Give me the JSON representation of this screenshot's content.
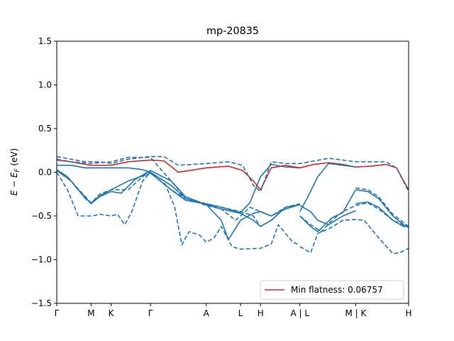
{
  "chart_data": {
    "type": "line",
    "title": "mp-20835",
    "ylabel": "E − E_F (eV)",
    "ylabel_parts": {
      "main": "E − E",
      "sub": "F",
      "unit": " (eV)"
    },
    "xlabel": "",
    "xlim": [
      0,
      4.92
    ],
    "ylim": [
      -1.5,
      1.5
    ],
    "yticks": [
      -1.5,
      -1.0,
      -0.5,
      0.0,
      0.5,
      1.0,
      1.5
    ],
    "ytick_labels": [
      "−1.5",
      "−1.0",
      "−0.5",
      "0.0",
      "0.5",
      "1.0",
      "1.5"
    ],
    "xticks": [
      {
        "x": 0.0,
        "label": "Γ"
      },
      {
        "x": 0.48,
        "label": "M"
      },
      {
        "x": 0.76,
        "label": "K"
      },
      {
        "x": 1.31,
        "label": "Γ"
      },
      {
        "x": 2.09,
        "label": "A"
      },
      {
        "x": 2.57,
        "label": "L"
      },
      {
        "x": 2.85,
        "label": "H"
      },
      {
        "x": 3.4,
        "label": "A | L"
      },
      {
        "x": 4.18,
        "label": "M | K"
      },
      {
        "x": 4.92,
        "label": "H"
      }
    ],
    "legend": {
      "label": "Min flatness: 0.06757",
      "color": "#d62728",
      "placement": "lower right"
    },
    "grid": false,
    "colors": {
      "band": "#1f77b4",
      "flat_band": "#d62728"
    },
    "series": [
      {
        "style": "solid",
        "color": "#1f77b4",
        "points": [
          [
            0,
            0.08
          ],
          [
            0.2,
            0.08
          ],
          [
            0.4,
            0.05
          ],
          [
            0.6,
            0.05
          ],
          [
            0.76,
            0.05
          ],
          [
            1.0,
            0.05
          ],
          [
            1.2,
            0.03
          ],
          [
            1.31,
            0.0
          ],
          [
            1.6,
            -0.15
          ],
          [
            1.8,
            -0.3
          ],
          [
            2.09,
            -0.37
          ],
          [
            2.3,
            -0.42
          ],
          [
            2.57,
            -0.47
          ],
          [
            2.75,
            -0.55
          ],
          [
            2.85,
            -0.62
          ],
          [
            3.0,
            -0.55
          ],
          [
            3.2,
            -0.4
          ],
          [
            3.4,
            -0.37
          ]
        ]
      },
      {
        "style": "solid",
        "color": "#1f77b4",
        "points": [
          [
            0,
            0.03
          ],
          [
            0.15,
            -0.05
          ],
          [
            0.3,
            -0.2
          ],
          [
            0.48,
            -0.36
          ],
          [
            0.6,
            -0.28
          ],
          [
            0.76,
            -0.22
          ],
          [
            0.9,
            -0.24
          ],
          [
            1.1,
            -0.08
          ],
          [
            1.31,
            0.02
          ],
          [
            1.6,
            -0.1
          ],
          [
            1.8,
            -0.28
          ],
          [
            2.09,
            -0.37
          ],
          [
            2.3,
            -0.55
          ],
          [
            2.4,
            -0.77
          ],
          [
            2.57,
            -0.55
          ],
          [
            2.75,
            -0.47
          ],
          [
            2.85,
            -0.45
          ],
          [
            3.0,
            -0.5
          ],
          [
            3.2,
            -0.42
          ],
          [
            3.4,
            -0.37
          ]
        ]
      },
      {
        "style": "solid",
        "color": "#1f77b4",
        "points": [
          [
            0,
            0.02
          ],
          [
            0.2,
            -0.1
          ],
          [
            0.4,
            -0.3
          ],
          [
            0.48,
            -0.35
          ],
          [
            0.6,
            -0.27
          ],
          [
            0.76,
            -0.2
          ],
          [
            1.0,
            -0.1
          ],
          [
            1.31,
            -0.01
          ],
          [
            1.6,
            -0.2
          ],
          [
            1.8,
            -0.32
          ],
          [
            2.09,
            -0.36
          ],
          [
            2.3,
            -0.4
          ],
          [
            2.57,
            -0.46
          ],
          [
            2.7,
            -0.35
          ],
          [
            2.85,
            -0.05
          ],
          [
            3.0,
            0.09
          ],
          [
            3.2,
            0.06
          ],
          [
            3.4,
            0.05
          ]
        ]
      },
      {
        "style": "solid",
        "color": "#d62728",
        "points": [
          [
            0,
            0.14
          ],
          [
            0.2,
            0.12
          ],
          [
            0.48,
            0.08
          ],
          [
            0.76,
            0.08
          ],
          [
            1.0,
            0.12
          ],
          [
            1.31,
            0.14
          ],
          [
            1.5,
            0.13
          ],
          [
            1.7,
            0.0
          ],
          [
            2.09,
            0.05
          ],
          [
            2.4,
            0.07
          ],
          [
            2.6,
            0.02
          ],
          [
            2.75,
            -0.1
          ],
          [
            2.85,
            -0.2
          ],
          [
            3.0,
            0.05
          ],
          [
            3.2,
            0.08
          ],
          [
            3.4,
            0.05
          ],
          [
            3.6,
            0.09
          ],
          [
            3.8,
            0.11
          ],
          [
            4.0,
            0.09
          ],
          [
            4.18,
            0.06
          ],
          [
            4.4,
            0.07
          ],
          [
            4.6,
            0.09
          ],
          [
            4.75,
            0.05
          ],
          [
            4.92,
            -0.2
          ]
        ]
      },
      {
        "style": "solid",
        "color": "#1f77b4",
        "points": [
          [
            3.4,
            -0.38
          ],
          [
            3.55,
            -0.45
          ],
          [
            3.65,
            -0.55
          ],
          [
            3.8,
            -0.6
          ],
          [
            4.0,
            -0.5
          ],
          [
            4.18,
            -0.44
          ]
        ]
      },
      {
        "style": "solid",
        "color": "#1f77b4",
        "points": [
          [
            3.4,
            -0.45
          ],
          [
            3.5,
            -0.3
          ],
          [
            3.65,
            -0.05
          ],
          [
            3.8,
            0.1
          ],
          [
            4.0,
            0.08
          ],
          [
            4.18,
            0.06
          ]
        ]
      },
      {
        "style": "solid",
        "color": "#1f77b4",
        "points": [
          [
            3.4,
            -0.5
          ],
          [
            3.55,
            -0.62
          ],
          [
            3.65,
            -0.68
          ],
          [
            3.85,
            -0.52
          ],
          [
            4.0,
            -0.46
          ],
          [
            4.18,
            -0.2
          ]
        ]
      },
      {
        "style": "solid",
        "color": "#1f77b4",
        "points": [
          [
            4.18,
            -0.2
          ],
          [
            4.35,
            -0.22
          ],
          [
            4.5,
            -0.3
          ],
          [
            4.7,
            -0.5
          ],
          [
            4.85,
            -0.6
          ],
          [
            4.92,
            -0.62
          ]
        ]
      },
      {
        "style": "solid",
        "color": "#1f77b4",
        "points": [
          [
            4.18,
            -0.36
          ],
          [
            4.35,
            -0.34
          ],
          [
            4.5,
            -0.4
          ],
          [
            4.7,
            -0.55
          ],
          [
            4.85,
            -0.62
          ],
          [
            4.92,
            -0.62
          ]
        ]
      },
      {
        "style": "dashed",
        "color": "#1f77b4",
        "points": [
          [
            0,
            0.18
          ],
          [
            0.2,
            0.15
          ],
          [
            0.4,
            0.12
          ],
          [
            0.6,
            0.12
          ],
          [
            0.76,
            0.1
          ],
          [
            1.0,
            0.15
          ],
          [
            1.2,
            0.17
          ],
          [
            1.31,
            0.18
          ],
          [
            1.5,
            0.18
          ],
          [
            1.7,
            0.08
          ],
          [
            2.09,
            0.1
          ],
          [
            2.4,
            0.12
          ],
          [
            2.6,
            0.08
          ],
          [
            2.75,
            -0.15
          ],
          [
            2.85,
            -0.22
          ],
          [
            3.0,
            0.12
          ],
          [
            3.2,
            0.1
          ],
          [
            3.4,
            0.1
          ],
          [
            3.6,
            0.13
          ],
          [
            3.8,
            0.16
          ],
          [
            4.0,
            0.14
          ],
          [
            4.18,
            0.12
          ],
          [
            4.4,
            0.12
          ],
          [
            4.6,
            0.12
          ],
          [
            4.75,
            0.05
          ],
          [
            4.92,
            -0.22
          ]
        ]
      },
      {
        "style": "dashed",
        "color": "#1f77b4",
        "points": [
          [
            0,
            0.15
          ],
          [
            0.2,
            0.12
          ],
          [
            0.48,
            0.1
          ],
          [
            0.76,
            0.12
          ],
          [
            1.0,
            0.17
          ],
          [
            1.31,
            0.17
          ],
          [
            1.6,
            -0.1
          ],
          [
            1.8,
            -0.3
          ],
          [
            2.09,
            -0.36
          ],
          [
            2.3,
            -0.4
          ],
          [
            2.57,
            -0.45
          ],
          [
            2.75,
            -0.5
          ],
          [
            2.85,
            -0.62
          ],
          [
            3.0,
            -0.55
          ],
          [
            3.2,
            -0.4
          ],
          [
            3.4,
            -0.36
          ]
        ]
      },
      {
        "style": "dashed",
        "color": "#1f77b4",
        "points": [
          [
            0,
            0.0
          ],
          [
            0.15,
            -0.2
          ],
          [
            0.3,
            -0.5
          ],
          [
            0.4,
            -0.5
          ],
          [
            0.5,
            -0.5
          ],
          [
            0.6,
            -0.48
          ],
          [
            0.76,
            -0.5
          ],
          [
            0.85,
            -0.48
          ],
          [
            0.95,
            -0.6
          ],
          [
            1.05,
            -0.45
          ],
          [
            1.2,
            -0.1
          ],
          [
            1.31,
            0.0
          ],
          [
            1.5,
            -0.1
          ],
          [
            1.65,
            -0.4
          ],
          [
            1.75,
            -0.83
          ],
          [
            1.85,
            -0.68
          ],
          [
            2.0,
            -0.72
          ],
          [
            2.09,
            -0.8
          ],
          [
            2.2,
            -0.75
          ],
          [
            2.3,
            -0.62
          ],
          [
            2.45,
            -0.85
          ],
          [
            2.57,
            -0.88
          ],
          [
            2.85,
            -0.87
          ],
          [
            3.0,
            -0.82
          ],
          [
            3.1,
            -0.6
          ],
          [
            3.2,
            -0.7
          ],
          [
            3.3,
            -0.8
          ],
          [
            3.4,
            -0.83
          ]
        ]
      },
      {
        "style": "dashed",
        "color": "#1f77b4",
        "points": [
          [
            0,
            0.03
          ],
          [
            0.2,
            -0.1
          ],
          [
            0.48,
            -0.35
          ],
          [
            0.6,
            -0.25
          ],
          [
            0.76,
            -0.2
          ],
          [
            1.0,
            -0.2
          ],
          [
            1.2,
            -0.05
          ],
          [
            1.31,
            0.0
          ],
          [
            1.6,
            -0.2
          ],
          [
            1.8,
            -0.3
          ],
          [
            2.09,
            -0.38
          ],
          [
            2.3,
            -0.42
          ],
          [
            2.5,
            -0.55
          ],
          [
            2.57,
            -0.5
          ],
          [
            2.7,
            -0.4
          ],
          [
            3.0,
            -0.5
          ],
          [
            3.2,
            -0.4
          ],
          [
            3.4,
            -0.37
          ]
        ]
      },
      {
        "style": "dashed",
        "color": "#1f77b4",
        "points": [
          [
            3.4,
            -0.85
          ],
          [
            3.55,
            -0.92
          ],
          [
            3.65,
            -0.7
          ],
          [
            3.8,
            -0.65
          ],
          [
            4.0,
            -0.55
          ],
          [
            4.18,
            -0.54
          ],
          [
            4.3,
            -0.55
          ],
          [
            4.5,
            -0.75
          ],
          [
            4.7,
            -0.93
          ],
          [
            4.8,
            -0.92
          ],
          [
            4.92,
            -0.87
          ]
        ]
      },
      {
        "style": "dashed",
        "color": "#1f77b4",
        "points": [
          [
            3.4,
            -0.5
          ],
          [
            3.55,
            -0.6
          ],
          [
            3.7,
            -0.68
          ],
          [
            3.85,
            -0.55
          ],
          [
            4.0,
            -0.45
          ],
          [
            4.18,
            -0.38
          ],
          [
            4.35,
            -0.35
          ],
          [
            4.5,
            -0.42
          ],
          [
            4.7,
            -0.55
          ],
          [
            4.92,
            -0.63
          ]
        ]
      },
      {
        "style": "dashed",
        "color": "#1f77b4",
        "points": [
          [
            4.18,
            -0.18
          ],
          [
            4.35,
            -0.2
          ],
          [
            4.5,
            -0.28
          ],
          [
            4.7,
            -0.48
          ],
          [
            4.92,
            -0.62
          ]
        ]
      }
    ]
  }
}
